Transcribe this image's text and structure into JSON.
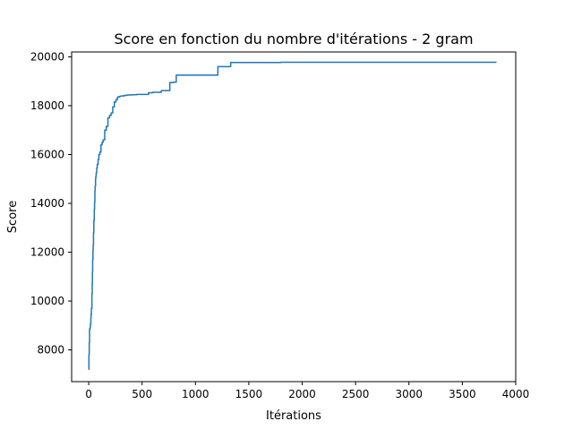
{
  "chart_data": {
    "type": "line",
    "title": "Score en fonction du nombre d'itérations - 2 gram",
    "xlabel": "Itérations",
    "ylabel": "Score",
    "xlim": [
      -160,
      4000
    ],
    "ylim": [
      6700,
      20200
    ],
    "x_ticks": [
      0,
      500,
      1000,
      1500,
      2000,
      2500,
      3000,
      3500,
      4000
    ],
    "y_ticks": [
      8000,
      10000,
      12000,
      14000,
      16000,
      18000,
      20000
    ],
    "grid": false,
    "legend": "none",
    "line_color": "#1f77b4",
    "step": true,
    "series": [
      {
        "x": [
          0,
          2,
          5,
          8,
          12,
          16,
          20,
          22,
          25,
          30,
          33,
          35,
          37,
          40,
          42,
          45,
          48,
          52,
          55,
          58,
          60,
          64,
          66,
          70,
          75,
          80,
          88,
          95,
          105,
          115,
          125,
          135,
          150,
          165,
          180,
          195,
          210,
          225,
          240,
          255,
          270,
          285,
          300,
          330,
          360,
          400,
          450,
          560,
          600,
          680,
          760,
          790,
          820,
          1210,
          1330,
          1800,
          3820
        ],
        "y": [
          7200,
          7800,
          8300,
          8850,
          8900,
          9050,
          9300,
          9450,
          9700,
          10300,
          10700,
          11200,
          11700,
          12100,
          12300,
          12800,
          13300,
          13750,
          14050,
          14500,
          14700,
          15000,
          15100,
          15250,
          15450,
          15600,
          15800,
          16000,
          16100,
          16400,
          16500,
          16600,
          17000,
          17150,
          17500,
          17600,
          17700,
          17950,
          18150,
          18250,
          18350,
          18380,
          18400,
          18420,
          18440,
          18450,
          18460,
          18530,
          18550,
          18620,
          18950,
          18960,
          19250,
          19600,
          19770,
          19780,
          19780
        ]
      }
    ]
  }
}
